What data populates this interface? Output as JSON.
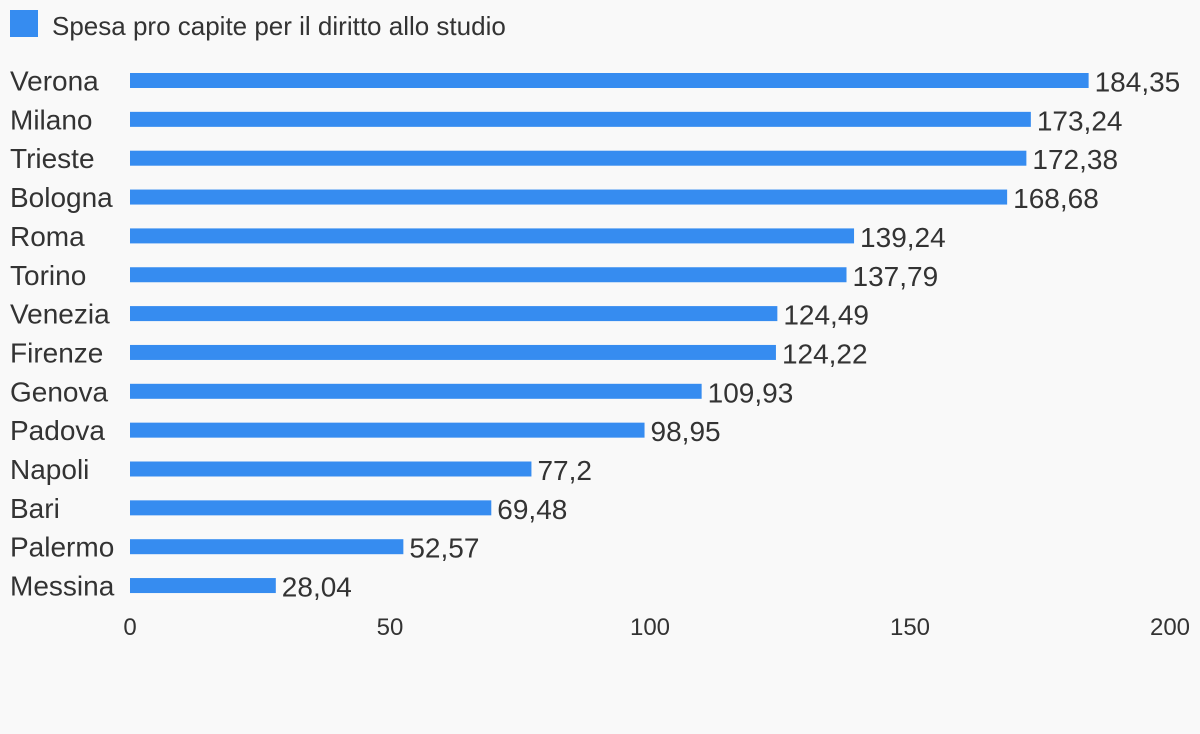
{
  "legend": {
    "label": "Spesa pro capite per il diritto allo studio"
  },
  "colors": {
    "bar": "#368cf0",
    "background": "#f9f9f9",
    "text": "#333333"
  },
  "chart_data": {
    "type": "bar",
    "orientation": "horizontal",
    "title": "",
    "xlabel": "",
    "ylabel": "",
    "categories": [
      "Verona",
      "Milano",
      "Trieste",
      "Bologna",
      "Roma",
      "Torino",
      "Venezia",
      "Firenze",
      "Genova",
      "Padova",
      "Napoli",
      "Bari",
      "Palermo",
      "Messina"
    ],
    "series": [
      {
        "name": "Spesa pro capite per il diritto allo studio",
        "values": [
          184.35,
          173.24,
          172.38,
          168.68,
          139.24,
          137.79,
          124.49,
          124.22,
          109.93,
          98.95,
          77.2,
          69.48,
          52.57,
          28.04
        ],
        "value_labels": [
          "184,35",
          "173,24",
          "172,38",
          "168,68",
          "139,24",
          "137,79",
          "124,49",
          "124,22",
          "109,93",
          "98,95",
          "77,2",
          "69,48",
          "52,57",
          "28,04"
        ]
      }
    ],
    "xlim": [
      0,
      200
    ],
    "xticks": [
      0,
      50,
      100,
      150,
      200
    ],
    "grid": false,
    "legend_position": "top-left"
  }
}
